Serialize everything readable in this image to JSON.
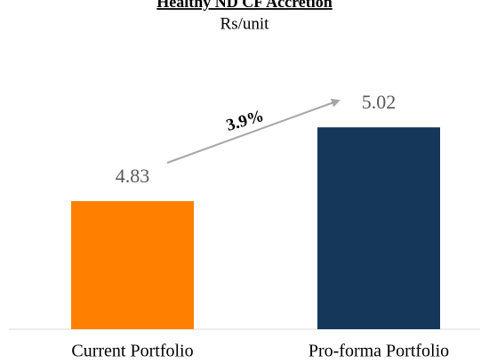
{
  "chart_data": {
    "type": "bar",
    "title": "Healthy ND CF Accretion",
    "subtitle": "Rs/unit",
    "categories": [
      "Current Portfolio",
      "Pro-forma Portfolio"
    ],
    "values": [
      4.83,
      5.02
    ],
    "colors": [
      "#ff8000",
      "#14375a"
    ],
    "ylim": [
      4.5,
      5.3
    ],
    "annotation": "3.9%"
  }
}
